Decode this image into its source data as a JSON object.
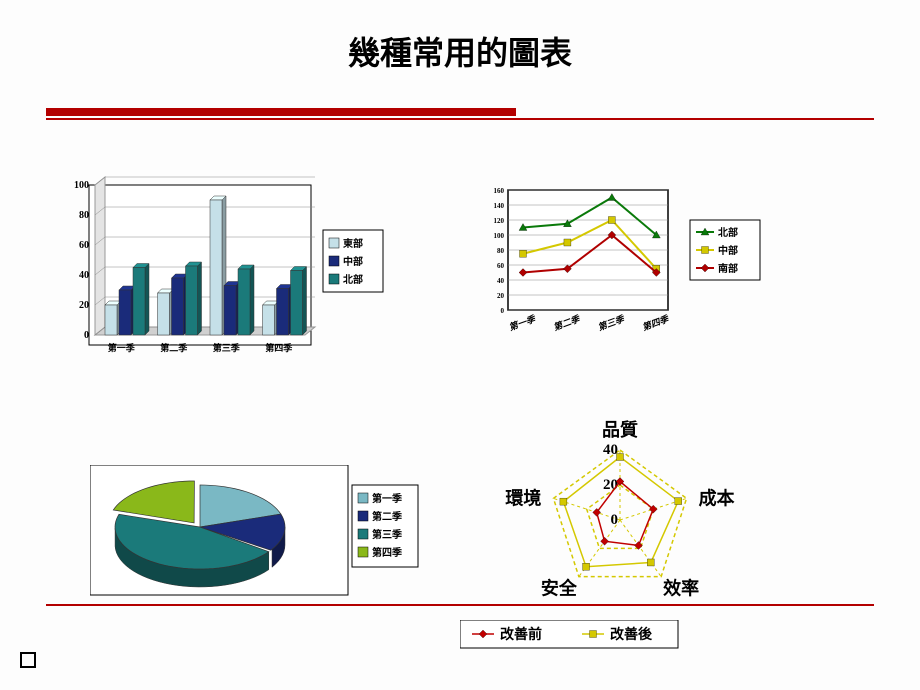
{
  "title": "幾種常用的圖表",
  "bar_chart": {
    "type": "3d_bar",
    "categories": [
      "第一季",
      "第二季",
      "第三季",
      "第四季"
    ],
    "series": [
      {
        "name": "東部",
        "color": "#c5e0e8",
        "values": [
          20,
          28,
          90,
          20
        ]
      },
      {
        "name": "中部",
        "color": "#1a2b7a",
        "values": [
          30,
          38,
          33,
          31
        ]
      },
      {
        "name": "北部",
        "color": "#1b7a7a",
        "values": [
          45,
          46,
          44,
          43
        ]
      }
    ],
    "ylim": [
      0,
      100
    ],
    "ytick_step": 20,
    "axis_font": 10,
    "bg": "#ffffff",
    "border": "#000000"
  },
  "line_chart": {
    "type": "line",
    "categories": [
      "第一季",
      "第二季",
      "第三季",
      "第四季"
    ],
    "series": [
      {
        "name": "北部",
        "color": "#0a7a0a",
        "marker": "triangle",
        "values": [
          110,
          115,
          150,
          100
        ]
      },
      {
        "name": "中部",
        "color": "#d4c800",
        "marker": "square",
        "values": [
          75,
          90,
          120,
          55
        ]
      },
      {
        "name": "南部",
        "color": "#b00000",
        "marker": "diamond",
        "values": [
          50,
          55,
          100,
          50
        ]
      }
    ],
    "ylim": [
      0,
      160
    ],
    "ytick_step": 20,
    "grid_color": "#999",
    "bg": "#ffffff",
    "border": "#000000"
  },
  "pie_chart": {
    "type": "3d_pie",
    "slices": [
      {
        "name": "第一季",
        "color": "#7ab8c4",
        "value": 20
      },
      {
        "name": "第二季",
        "color": "#1a2b7a",
        "value": 15
      },
      {
        "name": "第三季",
        "color": "#1b7a7a",
        "value": 45
      },
      {
        "name": "第四季",
        "color": "#8ab81a",
        "value": 20
      }
    ],
    "exploded_index": 3,
    "bg": "#ffffff",
    "border": "#000000"
  },
  "radar_chart": {
    "type": "radar",
    "axes": [
      "品質",
      "成本",
      "效率",
      "安全",
      "環境"
    ],
    "rings": [
      0,
      20,
      40
    ],
    "series": [
      {
        "name": "改善前",
        "color": "#c00000",
        "marker": "diamond",
        "values": [
          22,
          20,
          18,
          15,
          14
        ]
      },
      {
        "name": "改善後",
        "color": "#d4c800",
        "marker": "square",
        "values": [
          36,
          35,
          30,
          33,
          34
        ]
      }
    ],
    "axis_label_font": 18,
    "label_color": "#000"
  },
  "radar_legend": {
    "items": [
      {
        "name": "改善前",
        "color": "#c00000"
      },
      {
        "name": "改善後",
        "color": "#d4c800"
      }
    ]
  }
}
